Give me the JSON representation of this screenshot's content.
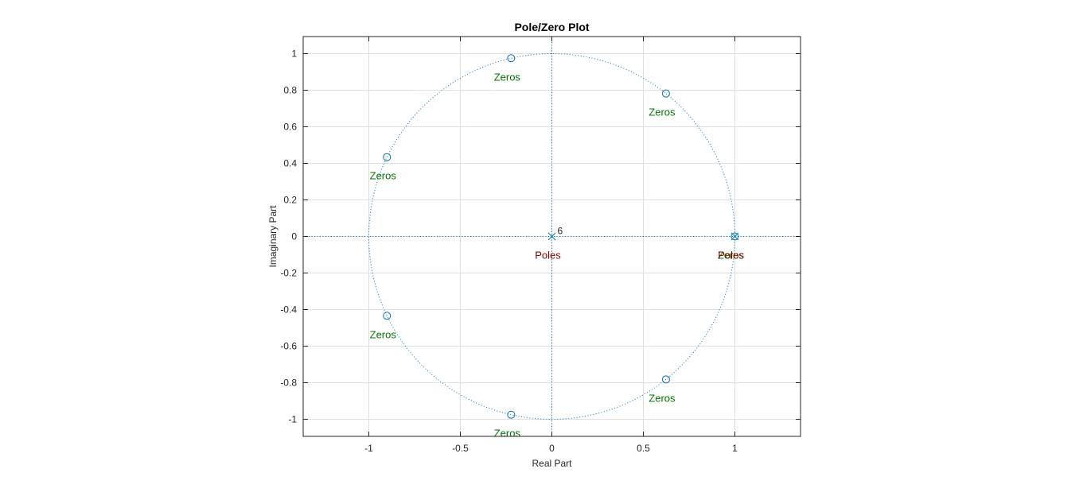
{
  "chart_data": {
    "type": "scatter",
    "title": "Pole/Zero Plot",
    "xlabel": "Real Part",
    "ylabel": "Imaginary Part",
    "xlim": [
      -1.3563,
      1.3563
    ],
    "ylim": [
      -1.1,
      1.1
    ],
    "x_ticks": [
      -1,
      -0.5,
      0,
      0.5,
      1
    ],
    "x_tick_labels": [
      "-1",
      "-0.5",
      "0",
      "0.5",
      "1"
    ],
    "y_ticks": [
      1,
      0.8,
      0.6,
      0.4,
      0.2,
      0,
      -0.2,
      -0.4,
      -0.6,
      -0.8,
      -1
    ],
    "y_tick_labels": [
      "1",
      "0.8",
      "0.6",
      "0.4",
      "0.2",
      "0",
      "-0.2",
      "-0.4",
      "-0.6",
      "-0.8",
      "-1"
    ],
    "grid": true,
    "unit_circle": true,
    "colors": {
      "marker": "#0072bd",
      "zeros_label": "#007400",
      "poles_label": "#8b0000",
      "grid": "#dfdfdf",
      "axes": "#262626"
    },
    "series": [
      {
        "name": "Zeros",
        "marker": "circle",
        "points": [
          {
            "x": 1.0,
            "y": 0.0
          },
          {
            "x": 0.6235,
            "y": 0.7818
          },
          {
            "x": -0.2225,
            "y": 0.9749
          },
          {
            "x": -0.901,
            "y": 0.4339
          },
          {
            "x": -0.901,
            "y": -0.4339
          },
          {
            "x": -0.2225,
            "y": -0.9749
          },
          {
            "x": 0.6235,
            "y": -0.7818
          }
        ]
      },
      {
        "name": "Poles",
        "marker": "x",
        "points": [
          {
            "x": 0.0,
            "y": 0.0,
            "multiplicity": "6"
          },
          {
            "x": 1.0,
            "y": 0.0
          }
        ]
      }
    ]
  }
}
